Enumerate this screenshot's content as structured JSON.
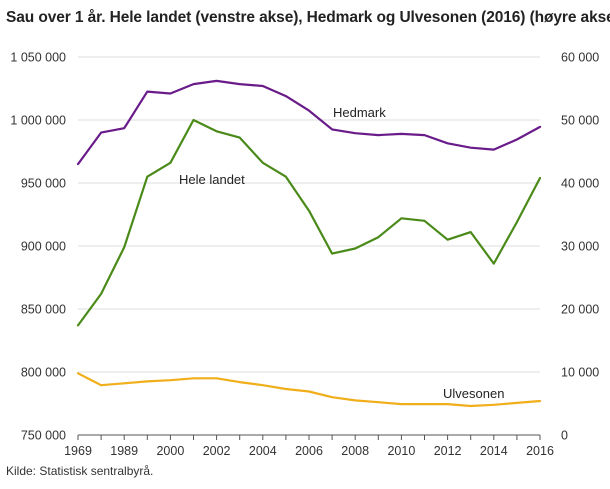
{
  "title": "Sau over 1 år. Hele landet (venstre akse), Hedmark og Ulvesonen (2016) (høyre akse)",
  "source": "Kilde: Statistisk sentralbyrå.",
  "chart_data": {
    "type": "line",
    "title": "Sau over 1 år. Hele landet (venstre akse), Hedmark og Ulvesonen (2016) (høyre akse)",
    "x": [
      1969,
      1979,
      1989,
      1999,
      2000,
      2001,
      2002,
      2003,
      2004,
      2005,
      2006,
      2007,
      2008,
      2009,
      2010,
      2011,
      2012,
      2013,
      2014,
      2015,
      2016
    ],
    "x_tick_labels": [
      "1969",
      "1989",
      "2000",
      "2002",
      "2004",
      "2006",
      "2008",
      "2010",
      "2012",
      "2014",
      "2016"
    ],
    "left_axis": {
      "ylim": [
        750000,
        1050000
      ],
      "ticks": [
        "750 000",
        "800 000",
        "850 000",
        "900 000",
        "950 000",
        "1 000 000",
        "1 050 000"
      ]
    },
    "right_axis": {
      "ylim": [
        0,
        60000
      ],
      "ticks": [
        "0",
        "10 000",
        "20 000",
        "30 000",
        "40 000",
        "50 000",
        "60 000"
      ]
    },
    "grid": "horizontal",
    "series": [
      {
        "name": "Hele landet",
        "axis": "left",
        "color": "#4a8a19",
        "values": [
          837000,
          862000,
          899000,
          955000,
          966000,
          1000000,
          991000,
          986000,
          966000,
          955000,
          928000,
          894000,
          898000,
          907000,
          922000,
          920000,
          905000,
          911000,
          886000,
          919000,
          954000
        ]
      },
      {
        "name": "Hedmark",
        "axis": "right",
        "color": "#6a1b8a",
        "values": [
          43000,
          48000,
          48700,
          54500,
          54200,
          55700,
          56200,
          55700,
          55400,
          53800,
          51500,
          48500,
          47900,
          47600,
          47800,
          47600,
          46300,
          45600,
          45300,
          46900,
          48900
        ]
      },
      {
        "name": "Ulvesonen",
        "axis": "right",
        "color": "#f0ae1a",
        "values": [
          9800,
          7900,
          8200,
          8500,
          8700,
          9000,
          9000,
          8400,
          7900,
          7300,
          6900,
          6000,
          5500,
          5200,
          4900,
          4900,
          4900,
          4600,
          4800,
          5100,
          5400
        ]
      }
    ]
  }
}
